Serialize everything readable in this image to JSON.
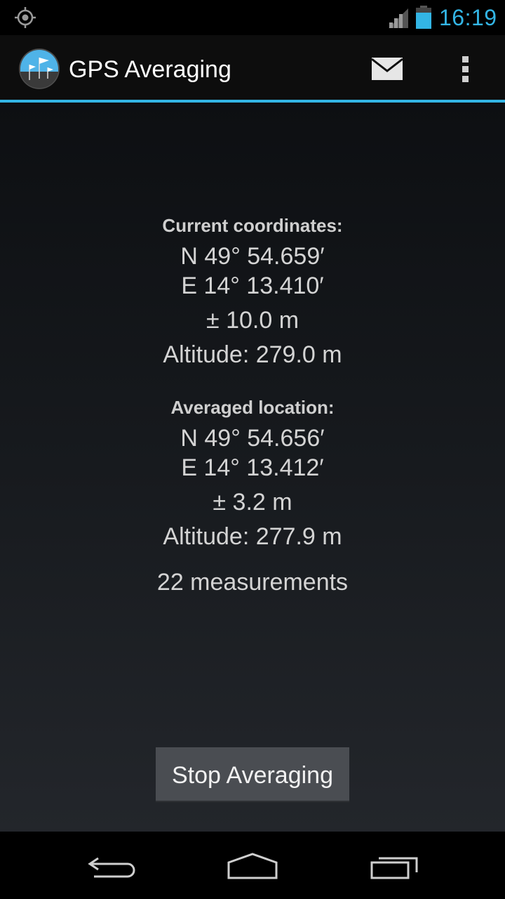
{
  "status_bar": {
    "time": "16:19",
    "accent_color": "#33b5e5",
    "icons": [
      "gps-icon",
      "signal-icon",
      "battery-icon"
    ]
  },
  "action_bar": {
    "title": "GPS Averaging",
    "icons": [
      "app-icon",
      "mail-icon",
      "overflow-menu-icon"
    ]
  },
  "current": {
    "heading": "Current coordinates:",
    "lat": "N 49° 54.659′",
    "lon": "E 14° 13.410′",
    "accuracy": "± 10.0 m",
    "altitude": "Altitude: 279.0 m"
  },
  "averaged": {
    "heading": "Averaged location:",
    "lat": "N 49° 54.656′",
    "lon": "E 14° 13.412′",
    "accuracy": "± 3.2 m",
    "altitude": "Altitude: 277.9 m"
  },
  "measurements": "22 measurements",
  "stop_button": "Stop Averaging",
  "nav_bar": {
    "icons": [
      "back-icon",
      "home-icon",
      "recents-icon"
    ]
  }
}
